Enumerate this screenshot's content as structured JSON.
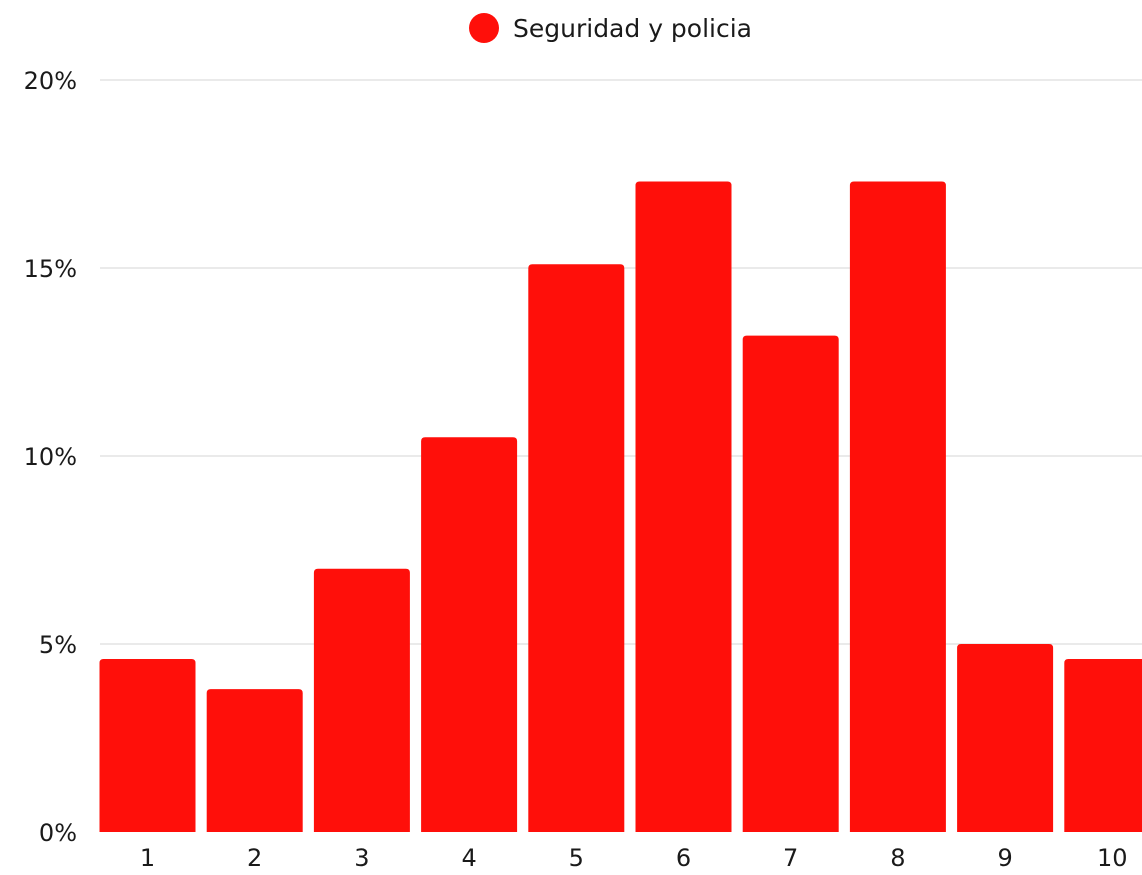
{
  "chart_data": {
    "type": "bar",
    "categories": [
      "1",
      "2",
      "3",
      "4",
      "5",
      "6",
      "7",
      "8",
      "9",
      "10"
    ],
    "series": [
      {
        "name": "Seguridad y policia",
        "color": "#ff0f0a",
        "values": [
          4.6,
          3.8,
          7.0,
          10.5,
          15.1,
          17.3,
          13.2,
          17.3,
          5.0,
          4.6
        ]
      }
    ],
    "y_ticks": [
      "0%",
      "5%",
      "10%",
      "15%",
      "20%"
    ],
    "ylim": [
      0,
      20
    ],
    "grid": true,
    "legend_position": "top"
  }
}
